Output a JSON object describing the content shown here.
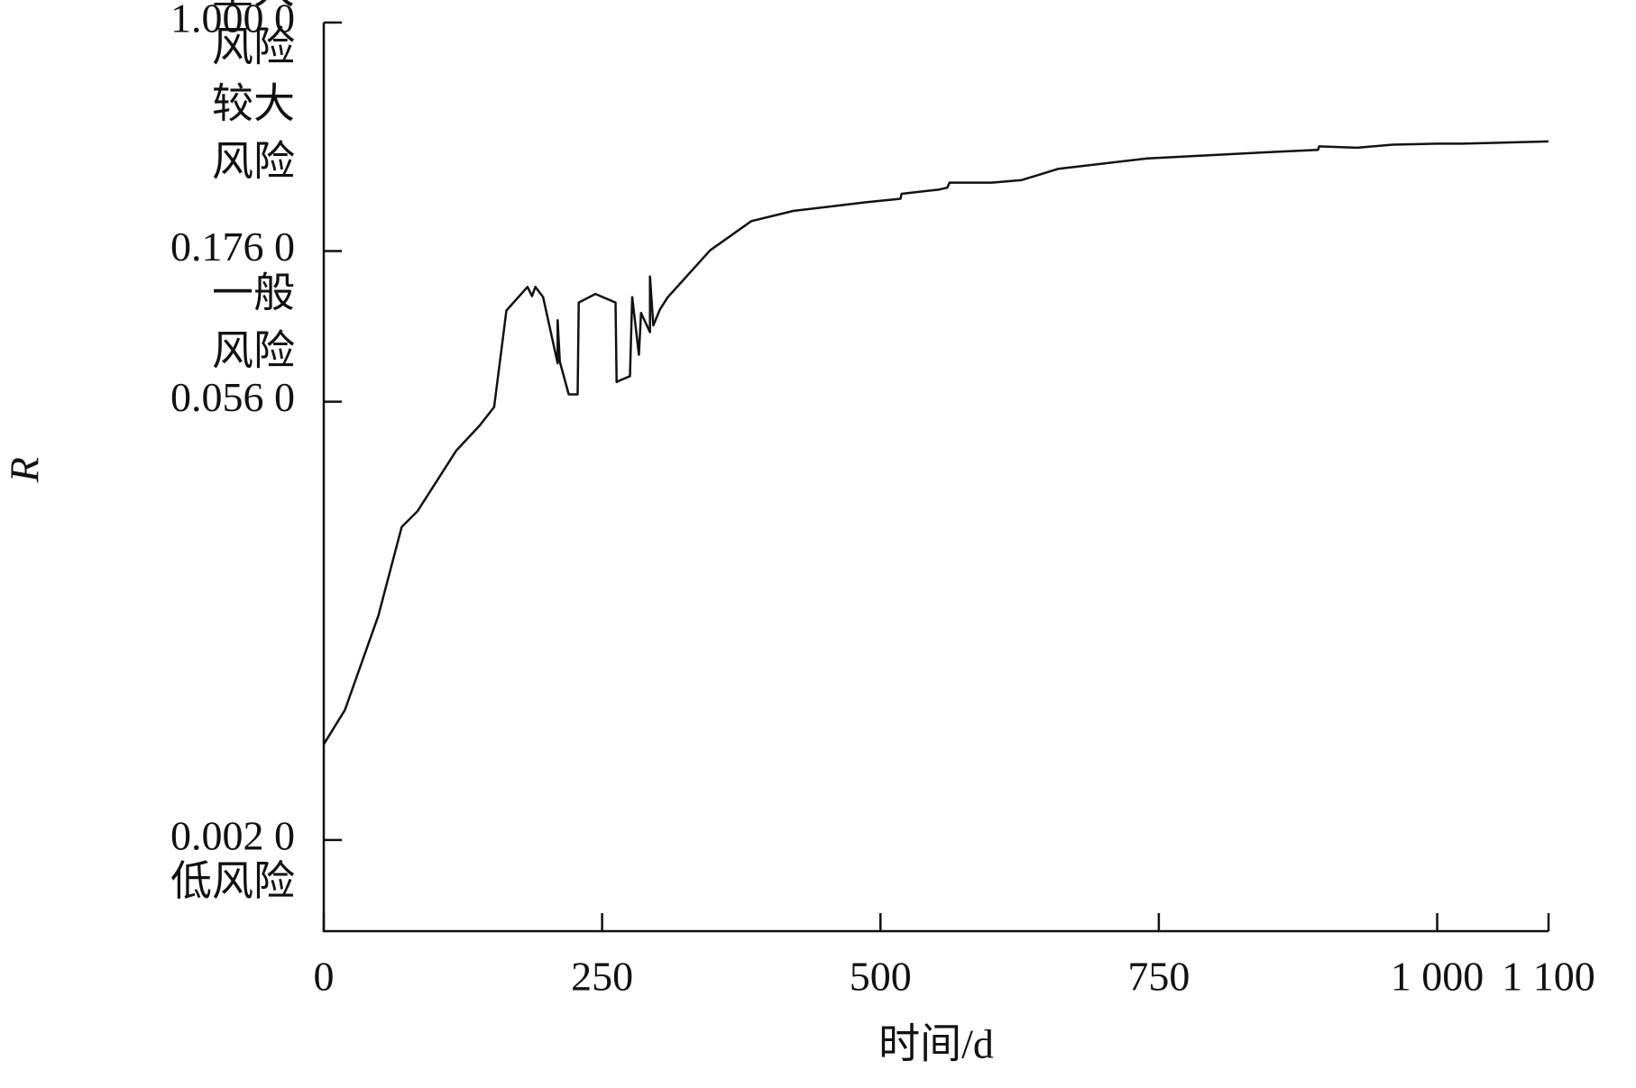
{
  "chart_data": {
    "type": "line",
    "x_label": "时间/d",
    "y_label": "R",
    "y_log": true,
    "xlim": [
      0,
      1100
    ],
    "ylim": [
      0.001,
      1
    ],
    "xticks": [
      0,
      250,
      500,
      750,
      {
        "value": 1000,
        "label": "1 000"
      },
      {
        "value": 1100,
        "label": "1 100"
      }
    ],
    "yticks": [
      {
        "value": 0.002,
        "label": "0.002 0"
      },
      {
        "value": 0.056,
        "label": "0.056 0"
      },
      {
        "value": 0.176,
        "label": "0.176 0"
      },
      {
        "value": 1,
        "label": "1.000 0"
      }
    ],
    "zones": [
      {
        "lines": [
          "低风险"
        ]
      },
      {
        "lines": [
          "一般",
          "风险"
        ]
      },
      {
        "lines": [
          "较大",
          "风险"
        ]
      },
      {
        "lines": [
          "重大",
          "风险"
        ]
      }
    ],
    "series": [
      {
        "color": "#111111",
        "x": [
          0,
          19,
          49,
          70,
          84,
          119,
          140,
          153,
          164,
          183,
          187,
          190,
          197,
          210,
          210,
          212,
          220,
          228,
          229,
          244,
          262,
          263,
          265,
          275,
          277,
          283,
          285,
          293,
          293,
          296,
          302,
          309,
          347,
          384,
          422,
          487,
          518,
          519,
          553,
          560,
          562,
          600,
          627,
          660,
          740,
          834,
          893,
          894,
          928,
          960,
          1000,
          1022,
          1100
        ],
        "values": [
          0.00414,
          0.00538,
          0.011,
          0.0216,
          0.0243,
          0.0386,
          0.0467,
          0.0538,
          0.112,
          0.134,
          0.125,
          0.134,
          0.124,
          0.075,
          0.104,
          0.076,
          0.0592,
          0.0592,
          0.119,
          0.127,
          0.119,
          0.065,
          0.0656,
          0.068,
          0.124,
          0.08,
          0.11,
          0.095,
          0.145,
          0.1,
          0.113,
          0.124,
          0.177,
          0.221,
          0.239,
          0.255,
          0.262,
          0.272,
          0.281,
          0.285,
          0.296,
          0.296,
          0.302,
          0.329,
          0.356,
          0.371,
          0.38,
          0.39,
          0.386,
          0.395,
          0.398,
          0.398,
          0.405
        ]
      }
    ]
  }
}
